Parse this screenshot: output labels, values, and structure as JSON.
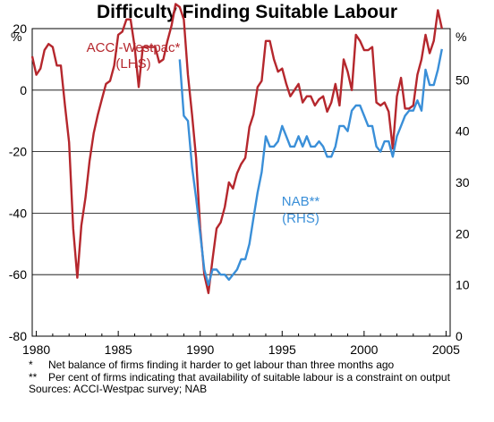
{
  "chart_data": {
    "type": "line",
    "title": "Difficulty Finding Suitable Labour",
    "left_axis": {
      "unit": "%",
      "range": [
        -80,
        20
      ],
      "ticks": [
        20,
        0,
        -20,
        -40,
        -60,
        -80
      ]
    },
    "right_axis": {
      "unit": "%",
      "range": [
        0,
        60
      ],
      "ticks": [
        50,
        40,
        30,
        20,
        10,
        0
      ]
    },
    "x_axis": {
      "range": [
        1979.75,
        2005.25
      ],
      "ticks": [
        1980,
        1985,
        1990,
        1995,
        2000,
        2005
      ],
      "tick_labels": [
        "1980",
        "1985",
        "1990",
        "1995",
        "2000",
        "2005"
      ]
    },
    "grid": true,
    "series": [
      {
        "name": "ACCI-Westpac*",
        "axis_label": "(LHS)",
        "axis": "left",
        "color": "#b5272d",
        "points": [
          [
            1979.75,
            11
          ],
          [
            1980.0,
            5
          ],
          [
            1980.25,
            7
          ],
          [
            1980.5,
            13
          ],
          [
            1980.75,
            15
          ],
          [
            1981.0,
            14
          ],
          [
            1981.25,
            8
          ],
          [
            1981.5,
            8
          ],
          [
            1981.75,
            -5
          ],
          [
            1982.0,
            -17
          ],
          [
            1982.25,
            -45
          ],
          [
            1982.5,
            -61
          ],
          [
            1982.75,
            -44
          ],
          [
            1983.0,
            -35
          ],
          [
            1983.25,
            -23
          ],
          [
            1983.5,
            -14
          ],
          [
            1983.75,
            -8
          ],
          [
            1984.0,
            -3
          ],
          [
            1984.25,
            2
          ],
          [
            1984.5,
            3
          ],
          [
            1984.75,
            8
          ],
          [
            1985.0,
            18
          ],
          [
            1985.25,
            19
          ],
          [
            1985.5,
            23
          ],
          [
            1985.75,
            23
          ],
          [
            1986.0,
            14
          ],
          [
            1986.25,
            1
          ],
          [
            1986.5,
            14
          ],
          [
            1986.75,
            14
          ],
          [
            1987.0,
            14
          ],
          [
            1987.25,
            14
          ],
          [
            1987.5,
            9
          ],
          [
            1987.75,
            10
          ],
          [
            1988.0,
            16
          ],
          [
            1988.25,
            21
          ],
          [
            1988.5,
            28
          ],
          [
            1988.75,
            27
          ],
          [
            1989.0,
            23
          ],
          [
            1989.25,
            5
          ],
          [
            1989.5,
            -8
          ],
          [
            1989.75,
            -22
          ],
          [
            1990.0,
            -45
          ],
          [
            1990.25,
            -60
          ],
          [
            1990.5,
            -66
          ],
          [
            1990.75,
            -55
          ],
          [
            1991.0,
            -45
          ],
          [
            1991.25,
            -43
          ],
          [
            1991.5,
            -38
          ],
          [
            1991.75,
            -30
          ],
          [
            1992.0,
            -32
          ],
          [
            1992.25,
            -27
          ],
          [
            1992.5,
            -24
          ],
          [
            1992.75,
            -22
          ],
          [
            1993.0,
            -12
          ],
          [
            1993.25,
            -8
          ],
          [
            1993.5,
            1
          ],
          [
            1993.75,
            3
          ],
          [
            1994.0,
            16
          ],
          [
            1994.25,
            16
          ],
          [
            1994.5,
            10
          ],
          [
            1994.75,
            6
          ],
          [
            1995.0,
            7
          ],
          [
            1995.25,
            2
          ],
          [
            1995.5,
            -2
          ],
          [
            1995.75,
            0
          ],
          [
            1996.0,
            2
          ],
          [
            1996.25,
            -4
          ],
          [
            1996.5,
            -2
          ],
          [
            1996.75,
            -2
          ],
          [
            1997.0,
            -5
          ],
          [
            1997.25,
            -3
          ],
          [
            1997.5,
            -2
          ],
          [
            1997.75,
            -7
          ],
          [
            1998.0,
            -4
          ],
          [
            1998.25,
            2
          ],
          [
            1998.5,
            -5
          ],
          [
            1998.75,
            10
          ],
          [
            1999.0,
            6
          ],
          [
            1999.25,
            0
          ],
          [
            1999.5,
            18
          ],
          [
            1999.75,
            16
          ],
          [
            2000.0,
            13
          ],
          [
            2000.25,
            13
          ],
          [
            2000.5,
            14
          ],
          [
            2000.75,
            -4
          ],
          [
            2001.0,
            -5
          ],
          [
            2001.25,
            -4
          ],
          [
            2001.5,
            -7
          ],
          [
            2001.75,
            -19
          ],
          [
            2002.0,
            -2
          ],
          [
            2002.25,
            4
          ],
          [
            2002.5,
            -6
          ],
          [
            2002.75,
            -6
          ],
          [
            2003.0,
            -5
          ],
          [
            2003.25,
            5
          ],
          [
            2003.5,
            10
          ],
          [
            2003.75,
            18
          ],
          [
            2004.0,
            12
          ],
          [
            2004.25,
            16
          ],
          [
            2004.5,
            26
          ],
          [
            2004.75,
            20
          ]
        ]
      },
      {
        "name": "NAB**",
        "axis_label": "(RHS)",
        "axis": "right",
        "color": "#3a8fd8",
        "points": [
          [
            1988.75,
            54
          ],
          [
            1989.0,
            43
          ],
          [
            1989.25,
            42
          ],
          [
            1989.5,
            33
          ],
          [
            1989.75,
            27
          ],
          [
            1990.0,
            20
          ],
          [
            1990.25,
            13
          ],
          [
            1990.5,
            10
          ],
          [
            1990.75,
            13
          ],
          [
            1991.0,
            13
          ],
          [
            1991.25,
            12
          ],
          [
            1991.5,
            12
          ],
          [
            1991.75,
            11
          ],
          [
            1992.0,
            12
          ],
          [
            1992.25,
            13
          ],
          [
            1992.5,
            15
          ],
          [
            1992.75,
            15
          ],
          [
            1993.0,
            18
          ],
          [
            1993.25,
            23
          ],
          [
            1993.5,
            28
          ],
          [
            1993.75,
            32
          ],
          [
            1994.0,
            39
          ],
          [
            1994.25,
            37
          ],
          [
            1994.5,
            37
          ],
          [
            1994.75,
            38
          ],
          [
            1995.0,
            41
          ],
          [
            1995.25,
            39
          ],
          [
            1995.5,
            37
          ],
          [
            1995.75,
            37
          ],
          [
            1996.0,
            39
          ],
          [
            1996.25,
            37
          ],
          [
            1996.5,
            39
          ],
          [
            1996.75,
            37
          ],
          [
            1997.0,
            37
          ],
          [
            1997.25,
            38
          ],
          [
            1997.5,
            37
          ],
          [
            1997.75,
            35
          ],
          [
            1998.0,
            35
          ],
          [
            1998.25,
            37
          ],
          [
            1998.5,
            41
          ],
          [
            1998.75,
            41
          ],
          [
            1999.0,
            40
          ],
          [
            1999.25,
            44
          ],
          [
            1999.5,
            45
          ],
          [
            1999.75,
            45
          ],
          [
            2000.0,
            43
          ],
          [
            2000.25,
            41
          ],
          [
            2000.5,
            41
          ],
          [
            2000.75,
            37
          ],
          [
            2001.0,
            36
          ],
          [
            2001.25,
            38
          ],
          [
            2001.5,
            38
          ],
          [
            2001.75,
            35
          ],
          [
            2002.0,
            39
          ],
          [
            2002.25,
            41
          ],
          [
            2002.5,
            43
          ],
          [
            2002.75,
            44
          ],
          [
            2003.0,
            44
          ],
          [
            2003.25,
            46
          ],
          [
            2003.5,
            44
          ],
          [
            2003.75,
            52
          ],
          [
            2004.0,
            49
          ],
          [
            2004.25,
            49
          ],
          [
            2004.5,
            52
          ],
          [
            2004.75,
            56
          ]
        ]
      }
    ]
  },
  "footnotes": [
    {
      "mark": "*",
      "text": "Net balance of firms finding it harder to get labour than three months ago"
    },
    {
      "mark": "**",
      "text": "Per cent of firms indicating that availability of suitable labour is a constraint on output"
    }
  ],
  "source": "Sources: ACCI-Westpac survey; NAB"
}
